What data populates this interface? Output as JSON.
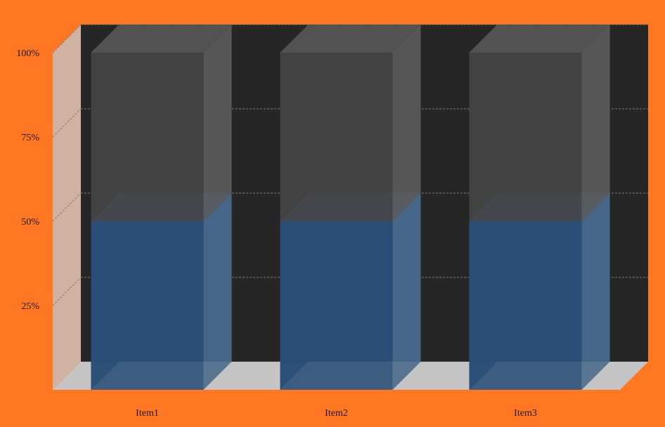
{
  "chart_data": {
    "type": "bar",
    "style": "3d-stacked-percent",
    "categories": [
      "Item1",
      "Item2",
      "Item3"
    ],
    "series": [
      {
        "values": [
          50,
          50,
          50
        ]
      },
      {
        "values": [
          50,
          50,
          50
        ]
      }
    ],
    "y_tick_labels": [
      "25%",
      "50%",
      "75%",
      "100%"
    ],
    "y_ticks": [
      25,
      50,
      75,
      100
    ],
    "ylim": [
      0,
      100
    ],
    "title": "",
    "xlabel": "",
    "ylabel": "",
    "grid": true,
    "legend": "none"
  },
  "colors": {
    "page_background": "#FF7722",
    "back_wall": "#262626",
    "side_wall": "#D1B2A0",
    "floor": "#C4C4C4",
    "series_front": [
      "#2A4F76",
      "#434343"
    ],
    "series_side": [
      "#496A8A",
      "#5A5A5A"
    ],
    "series_top": [
      "#50698A",
      "#555555"
    ],
    "grid_line": "#7A7A7A"
  }
}
